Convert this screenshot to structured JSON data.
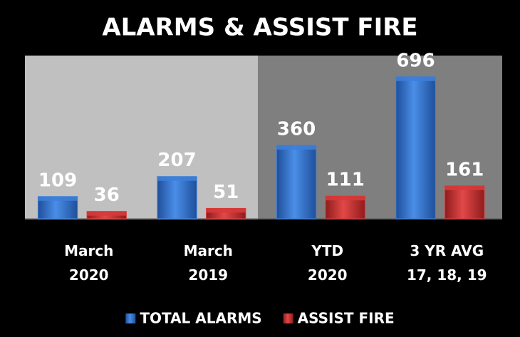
{
  "chart_data": {
    "type": "bar",
    "title": "ALARMS & ASSIST FIRE",
    "categories": [
      "March\n2020",
      "March\n2019",
      "YTD\n2020",
      "3 YR AVG\n17, 18, 19"
    ],
    "series": [
      {
        "name": "TOTAL ALARMS",
        "color": "#3d7ed8",
        "values": [
          109,
          207,
          360,
          696
        ]
      },
      {
        "name": "ASSIST FIRE",
        "color": "#d63a3a",
        "values": [
          36,
          51,
          111,
          161
        ]
      }
    ],
    "ylim": [
      0,
      800
    ]
  }
}
